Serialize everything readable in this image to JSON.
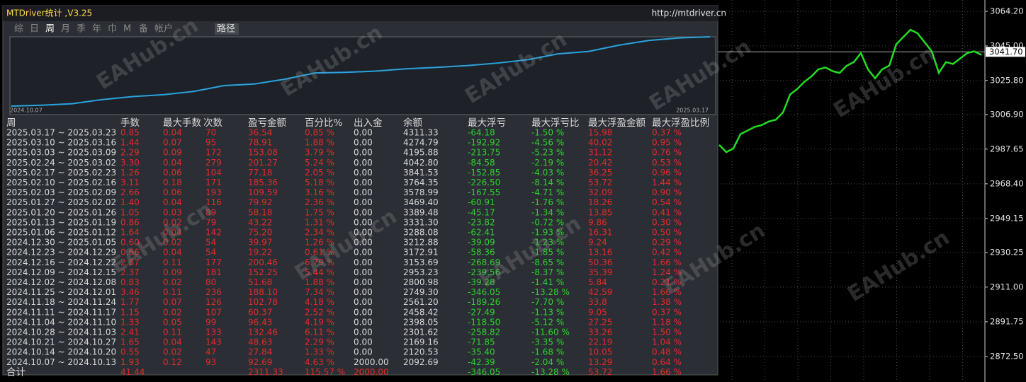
{
  "panel": {
    "title": "MTDriver统计 ,V3.25",
    "url": "http://mtdriver.cn",
    "tabs": [
      "综",
      "日",
      "周",
      "月",
      "季",
      "年",
      "巾",
      "M",
      "备",
      "帐户"
    ],
    "active_tab": 2,
    "path_button": "路径",
    "equity_chart": {
      "start_label": "2024.10.07",
      "end_label": "2025.03.17"
    },
    "table": {
      "headers": [
        "周",
        "手数",
        "最大手数",
        "次数",
        "盈亏金额",
        "百分比%",
        "出入金",
        "余额",
        "最大浮亏",
        "最大浮亏比",
        "最大浮盈金额",
        "最大浮盈比例"
      ],
      "rows": [
        [
          "2025.03.17 ~ 2025.03.23",
          "0.85",
          "0.04",
          "70",
          "36.54",
          "0.85 %",
          "0.00",
          "4311.33",
          "-64.18",
          "-1.50 %",
          "15.98",
          "0.37 %"
        ],
        [
          "2025.03.10 ~ 2025.03.16",
          "1.44",
          "0.07",
          "95",
          "78.91",
          "1.88 %",
          "0.00",
          "4274.79",
          "-192.92",
          "-4.56 %",
          "40.02",
          "0.95 %"
        ],
        [
          "2025.03.03 ~ 2025.03.09",
          "2.29",
          "0.09",
          "172",
          "153.08",
          "3.79 %",
          "0.00",
          "4195.88",
          "-213.75",
          "-5.23 %",
          "31.12",
          "0.76 %"
        ],
        [
          "2025.02.24 ~ 2025.03.02",
          "3.30",
          "0.04",
          "279",
          "201.27",
          "5.24 %",
          "0.00",
          "4042.80",
          "-84.58",
          "-2.19 %",
          "20.42",
          "0.53 %"
        ],
        [
          "2025.02.17 ~ 2025.02.23",
          "1.26",
          "0.06",
          "104",
          "77.18",
          "2.05 %",
          "0.00",
          "3841.53",
          "-152.85",
          "-4.03 %",
          "36.25",
          "0.96 %"
        ],
        [
          "2025.02.10 ~ 2025.02.16",
          "3.11",
          "0.18",
          "171",
          "185.36",
          "5.18 %",
          "0.00",
          "3764.35",
          "-226.50",
          "-8.14 %",
          "53.72",
          "1.44 %"
        ],
        [
          "2025.02.03 ~ 2025.02.09",
          "2.66",
          "0.06",
          "193",
          "109.59",
          "3.16 %",
          "0.00",
          "3578.99",
          "-167.55",
          "-4.71 %",
          "32.09",
          "0.90 %"
        ],
        [
          "2025.01.27 ~ 2025.02.02",
          "1.40",
          "0.04",
          "116",
          "79.92",
          "2.36 %",
          "0.00",
          "3469.40",
          "-60.91",
          "-1.76 %",
          "18.26",
          "0.54 %"
        ],
        [
          "2025.01.20 ~ 2025.01.26",
          "1.05",
          "0.03",
          "89",
          "58.18",
          "1.75 %",
          "0.00",
          "3389.48",
          "-45.17",
          "-1.34 %",
          "13.85",
          "0.41 %"
        ],
        [
          "2025.01.13 ~ 2025.01.19",
          "0.86",
          "0.02",
          "79",
          "43.22",
          "1.31 %",
          "0.00",
          "3331.30",
          "-23.82",
          "-0.72 %",
          "9.86",
          "0.30 %"
        ],
        [
          "2025.01.06 ~ 2025.01.12",
          "1.64",
          "0.04",
          "142",
          "75.20",
          "2.34 %",
          "0.00",
          "3288.08",
          "-62.41",
          "-1.93 %",
          "16.31",
          "0.50 %"
        ],
        [
          "2024.12.30 ~ 2025.01.05",
          "0.60",
          "0.02",
          "54",
          "39.97",
          "1.26 %",
          "0.00",
          "3212.88",
          "-39.09",
          "-1.23 %",
          "9.24",
          "0.29 %"
        ],
        [
          "2024.12.23 ~ 2024.12.29",
          "0.66",
          "0.04",
          "54",
          "19.22",
          "0.61 %",
          "0.00",
          "3172.91",
          "-58.36",
          "-1.85 %",
          "13.16",
          "0.42 %"
        ],
        [
          "2024.12.16 ~ 2024.12.22",
          "2.87",
          "0.11",
          "177",
          "200.46",
          "6.79 %",
          "0.00",
          "3153.69",
          "-268.69",
          "-8.65 %",
          "50.36",
          "1.66 %"
        ],
        [
          "2024.12.09 ~ 2024.12.15",
          "2.37",
          "0.09",
          "181",
          "152.25",
          "5.44 %",
          "0.00",
          "2953.23",
          "-239.56",
          "-8.37 %",
          "35.39",
          "1.24 %"
        ],
        [
          "2024.12.02 ~ 2024.12.08",
          "0.83",
          "0.02",
          "80",
          "51.68",
          "1.88 %",
          "0.00",
          "2800.98",
          "-39.28",
          "-1.41 %",
          "5.84",
          "0.21 %"
        ],
        [
          "2024.11.25 ~ 2024.12.01",
          "3.46",
          "0.11",
          "236",
          "188.10",
          "7.34 %",
          "0.00",
          "2749.30",
          "-346.05",
          "-13.28 %",
          "42.59",
          "1.66 %"
        ],
        [
          "2024.11.18 ~ 2024.11.24",
          "1.77",
          "0.07",
          "126",
          "102.78",
          "4.18 %",
          "0.00",
          "2561.20",
          "-189.26",
          "-7.70 %",
          "33.8",
          "1.38 %"
        ],
        [
          "2024.11.11 ~ 2024.11.17",
          "1.15",
          "0.02",
          "107",
          "60.37",
          "2.52 %",
          "0.00",
          "2458.42",
          "-27.49",
          "-1.13 %",
          "9.05",
          "0.37 %"
        ],
        [
          "2024.11.04 ~ 2024.11.10",
          "1.33",
          "0.05",
          "99",
          "96.43",
          "4.19 %",
          "0.00",
          "2398.05",
          "-118.50",
          "-5.12 %",
          "27.25",
          "1.18 %"
        ],
        [
          "2024.10.28 ~ 2024.11.03",
          "2.41",
          "0.11",
          "133",
          "132.46",
          "6.11 %",
          "0.00",
          "2301.62",
          "-258.82",
          "-11.60 %",
          "33.26",
          "1.50 %"
        ],
        [
          "2024.10.21 ~ 2024.10.27",
          "1.65",
          "0.04",
          "143",
          "48.63",
          "2.29 %",
          "0.00",
          "2169.16",
          "-71.85",
          "-3.35 %",
          "22.19",
          "1.04 %"
        ],
        [
          "2024.10.14 ~ 2024.10.20",
          "0.55",
          "0.02",
          "47",
          "27.84",
          "1.33 %",
          "0.00",
          "2120.53",
          "-35.40",
          "-1.68 %",
          "10.05",
          "0.48 %"
        ],
        [
          "2024.10.07 ~ 2024.10.13",
          "1.93",
          "0.12",
          "93",
          "92.69",
          "4.63 %",
          "2000.00",
          "2092.69",
          "-42.39",
          "-2.04 %",
          "13.29",
          "0.64 %"
        ]
      ],
      "totals": {
        "label": "合计",
        "lots": "41.44",
        "profit": "2311.33",
        "percent": "115.57 %",
        "deposit": "2000.00",
        "max_drawdown": "-346.05",
        "max_drawdown_pct": "-13.28 %",
        "max_float_profit": "53.72",
        "max_float_profit_pct": "1.66 %"
      }
    }
  },
  "watermark": "EAHub.cn",
  "chart_data": {
    "type": "line",
    "color": "#22dd22",
    "ylim": [
      2858.3,
      3070.5
    ],
    "yticks": [
      {
        "value": 3064.2,
        "label": "3064.20"
      },
      {
        "value": 3045,
        "label": "3045.00"
      },
      {
        "value": 3025.8,
        "label": "3025.80"
      },
      {
        "value": 3006.9,
        "label": "3006.90"
      },
      {
        "value": 2987.65,
        "label": "2987.65"
      },
      {
        "value": 2968.4,
        "label": "2968.40"
      },
      {
        "value": 2949.15,
        "label": "2949.15"
      },
      {
        "value": 2930.25,
        "label": "2930.25"
      },
      {
        "value": 2911,
        "label": "2911.00"
      },
      {
        "value": 2891.75,
        "label": "2891.75"
      },
      {
        "value": 2872.5,
        "label": "2872.50"
      }
    ],
    "current_price": {
      "value": 3041.7,
      "label": "3041.70"
    },
    "grid": true,
    "values": [
      2990,
      2986,
      2988,
      2996,
      2998,
      3000,
      3001,
      3003,
      3004,
      3008,
      3018,
      3021,
      3025,
      3028,
      3032,
      3033,
      3031,
      3030,
      3034,
      3036,
      3041,
      3032,
      3027,
      3032,
      3034,
      3046,
      3050,
      3054,
      3052,
      3047,
      3042,
      3030,
      3036,
      3035,
      3038,
      3041,
      3042,
      3040
    ]
  }
}
